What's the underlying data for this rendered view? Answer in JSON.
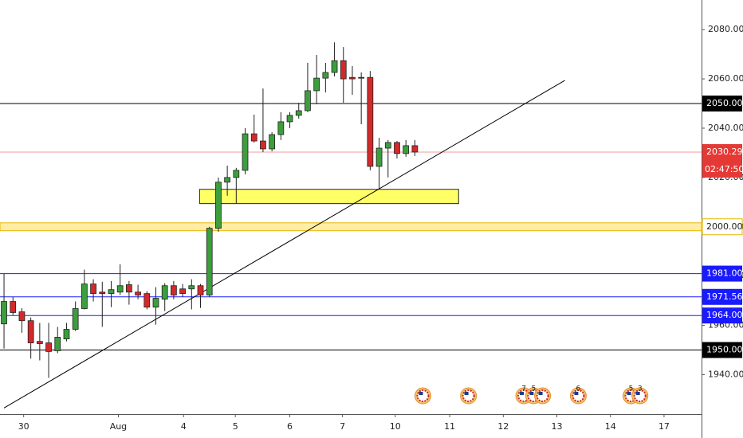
{
  "chart_data": {
    "type": "candlestick",
    "x": [
      0,
      1,
      2,
      3,
      4,
      5,
      6,
      7,
      8,
      9,
      10,
      11,
      12,
      13,
      14,
      15,
      16,
      17,
      18,
      19,
      20,
      21,
      22,
      23,
      24,
      25,
      26,
      27,
      28,
      29,
      30,
      31,
      32,
      33,
      34,
      35,
      36,
      37,
      38,
      39,
      40,
      41,
      42,
      43,
      44,
      45,
      46
    ],
    "open": [
      1960.6,
      1969.7,
      1965.5,
      1961.9,
      1953.5,
      1952.9,
      1949.7,
      1954.5,
      1958.4,
      1966.8,
      1976.8,
      1973.5,
      1972.9,
      1973.5,
      1976.5,
      1973.5,
      1972.9,
      1967.4,
      1970.6,
      1976.1,
      1974.8,
      1974.8,
      1976.1,
      1972.3,
      1999.4,
      2018.1,
      2020.0,
      2022.9,
      2037.7,
      2034.8,
      2031.6,
      2037.4,
      2042.6,
      2045.2,
      2047.1,
      2055.2,
      2060.3,
      2062.6,
      2067.4,
      2060.6,
      2060.6,
      2060.6,
      2024.5,
      2031.9,
      2034.2,
      2029.7,
      2032.9
    ],
    "high": [
      1981.0,
      1971.6,
      1967.0,
      1963.2,
      1961.0,
      1961.0,
      1959.4,
      1961.0,
      1969.7,
      1982.6,
      1978.7,
      1977.7,
      1978.0,
      1984.8,
      1978.0,
      1976.5,
      1973.9,
      1975.5,
      1977.1,
      1978.0,
      1976.8,
      1978.7,
      1976.8,
      2000.0,
      2020.0,
      2024.8,
      2023.9,
      2040.0,
      2045.5,
      2056.1,
      2038.4,
      2046.5,
      2046.5,
      2050.3,
      2066.5,
      2069.7,
      2066.5,
      2074.8,
      2072.9,
      2065.2,
      2062.6,
      2063.2,
      2036.1,
      2035.2,
      2034.8,
      2035.2,
      2035.2
    ],
    "low": [
      1950.6,
      1964.2,
      1957.0,
      1946.5,
      1945.8,
      1938.7,
      1948.7,
      1953.5,
      1957.7,
      1966.5,
      1969.7,
      1959.4,
      1967.4,
      1972.3,
      1968.4,
      1970.6,
      1966.5,
      1960.3,
      1965.8,
      1970.6,
      1971.6,
      1966.5,
      1967.1,
      1971.6,
      1998.0,
      2012.6,
      2009.4,
      2021.3,
      2034.2,
      2030.3,
      2030.6,
      2035.2,
      2040.0,
      2043.9,
      2046.5,
      2049.7,
      2054.5,
      2061.0,
      2050.3,
      2053.5,
      2041.6,
      2022.9,
      2015.2,
      2020.0,
      2027.7,
      2028.4,
      2028.7
    ],
    "close": [
      1969.7,
      1965.2,
      1961.9,
      1952.9,
      1952.6,
      1949.4,
      1955.2,
      1958.4,
      1966.8,
      1976.8,
      1972.9,
      1972.9,
      1974.5,
      1976.1,
      1973.5,
      1972.3,
      1967.4,
      1971.0,
      1976.1,
      1972.3,
      1972.9,
      1976.1,
      1972.3,
      1999.4,
      2018.1,
      2020.0,
      2022.9,
      2037.7,
      2034.8,
      2031.6,
      2037.4,
      2042.6,
      2045.2,
      2047.1,
      2055.2,
      2060.3,
      2062.6,
      2067.4,
      2060.0,
      2060.0,
      2060.3,
      2024.5,
      2031.9,
      2034.2,
      2029.7,
      2032.9,
      2030.3
    ],
    "up_color": "#3c9e3c",
    "down_color": "#d22a2a",
    "xlim": [
      -0.45,
      78.1
    ],
    "ylim": [
      1924,
      2092
    ],
    "xticks": [
      {
        "value": 2.2,
        "label": "30"
      },
      {
        "value": 12.8,
        "label": "Aug"
      },
      {
        "value": 20.1,
        "label": "4"
      },
      {
        "value": 25.9,
        "label": "5"
      },
      {
        "value": 32,
        "label": "6"
      },
      {
        "value": 37.9,
        "label": "7"
      },
      {
        "value": 43.8,
        "label": "10"
      },
      {
        "value": 49.9,
        "label": "11"
      },
      {
        "value": 55.9,
        "label": "12"
      },
      {
        "value": 61.9,
        "label": "13"
      },
      {
        "value": 67.9,
        "label": "14"
      },
      {
        "value": 73.9,
        "label": "17"
      }
    ],
    "yticks": [
      {
        "value": 1940,
        "label": "1940.00"
      },
      {
        "value": 1960,
        "label": "1960.00"
      },
      {
        "value": 1980,
        "label": "1980.00"
      },
      {
        "value": 2000,
        "label": "2000.00"
      },
      {
        "value": 2020,
        "label": "2020.00"
      },
      {
        "value": 2040,
        "label": "2040.00"
      },
      {
        "value": 2060,
        "label": "2060.00"
      },
      {
        "value": 2080,
        "label": "2080.00"
      }
    ],
    "levels": [
      {
        "value": 2050,
        "label": "2050.00",
        "color": "#000000"
      },
      {
        "value": 1981,
        "label": "1981.00",
        "color": "#1a1aff"
      },
      {
        "value": 1971.56,
        "label": "1971.56",
        "color": "#1a1aff"
      },
      {
        "value": 1964,
        "label": "1964.00",
        "color": "#1a1aff"
      },
      {
        "value": 1950,
        "label": "1950.00",
        "color": "#000000"
      }
    ],
    "current_price": {
      "value": 2030.29,
      "label": "2030.29",
      "countdown": "02:47:50",
      "color": "#e53935"
    },
    "zones": [
      {
        "x": [
          21.9,
          50.9
        ],
        "y": [
          2009.4,
          2015.2
        ],
        "color": "#ffff66"
      },
      {
        "y": [
          1998.4,
          2001.6
        ],
        "color": "#ffe680",
        "label": "2000.00"
      }
    ],
    "trendline": {
      "x": [
        0,
        62.8
      ],
      "y": [
        1926.5,
        2059.4
      ],
      "color": "#000000"
    },
    "events": [
      {
        "x": 46.9
      },
      {
        "x": 52
      },
      {
        "x": 58.2,
        "label": "7"
      },
      {
        "x": 59.3,
        "label": "5"
      },
      {
        "x": 60.3
      },
      {
        "x": 64.3,
        "label": "6"
      },
      {
        "x": 70.2,
        "label": "5"
      },
      {
        "x": 71.2,
        "label": "3"
      }
    ]
  }
}
